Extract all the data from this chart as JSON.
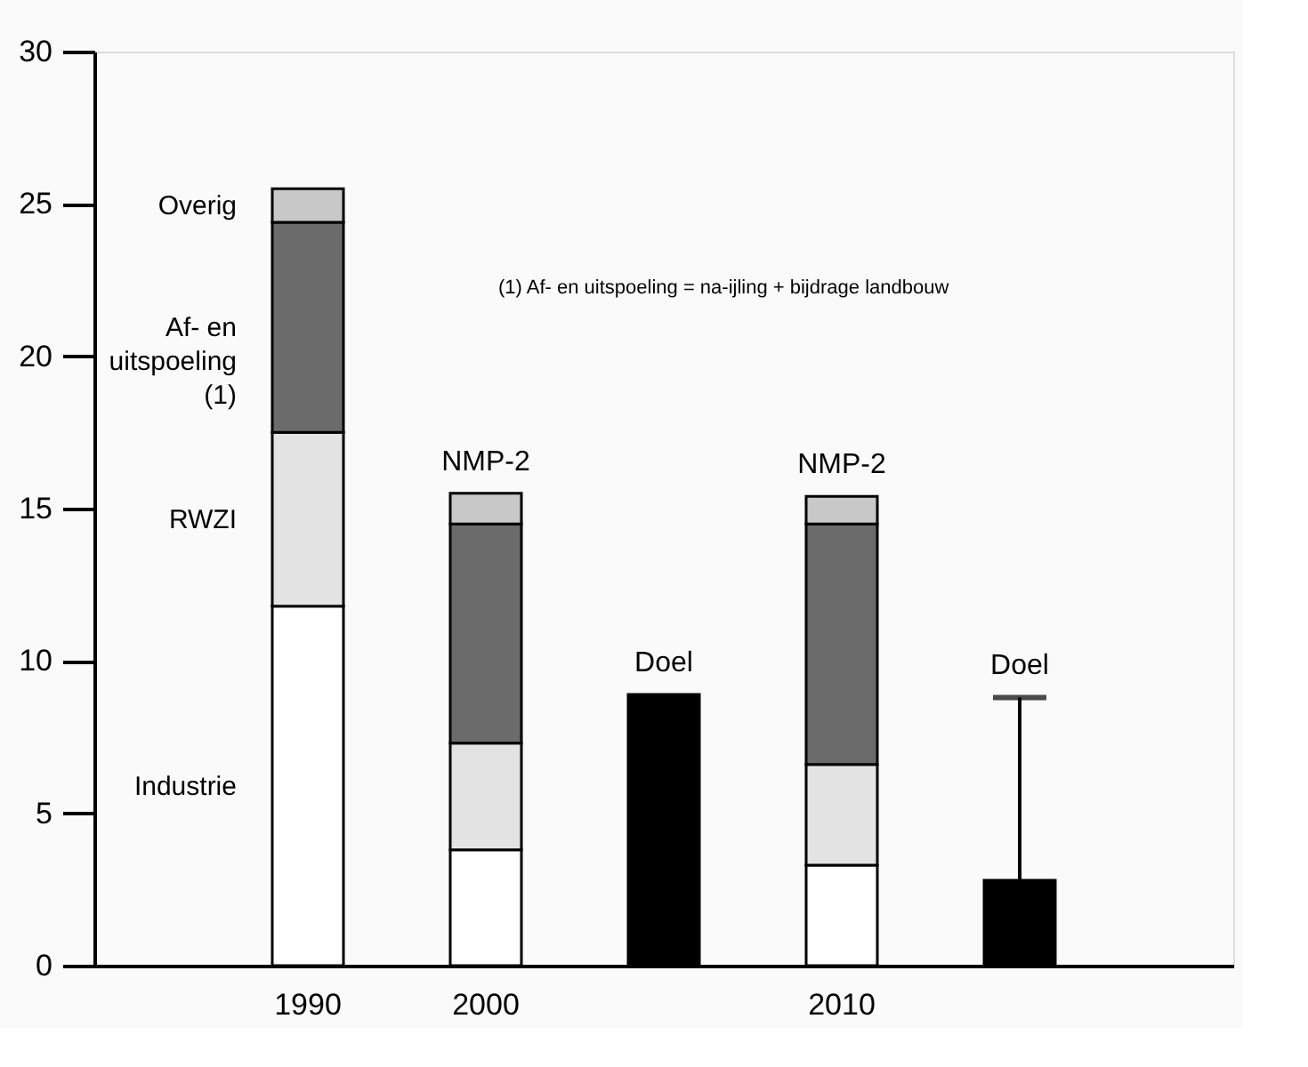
{
  "chart_data": {
    "type": "bar",
    "stacked": true,
    "categories": [
      "1990",
      "2000",
      null,
      "2010",
      null
    ],
    "series": [
      {
        "name": "Industrie",
        "color": "#ffffff",
        "values": [
          11.8,
          3.8,
          null,
          3.3,
          null
        ]
      },
      {
        "name": "RWZI",
        "color": "#e3e3e3",
        "values": [
          5.7,
          3.5,
          null,
          3.3,
          null
        ]
      },
      {
        "name": "Af- en uitspoeling (1)",
        "color": "#6b6b6b",
        "values": [
          6.9,
          7.2,
          null,
          7.9,
          null
        ]
      },
      {
        "name": "Overig",
        "color": "#c8c8c8",
        "values": [
          1.1,
          1.0,
          null,
          0.9,
          null
        ]
      },
      {
        "color": "#000000",
        "values": [
          null,
          null,
          8.9,
          null,
          2.8
        ],
        "errors": [
          null,
          null,
          null,
          null,
          [
            2.8,
            8.8
          ]
        ]
      }
    ],
    "ylim": [
      0,
      30
    ],
    "yticks": [
      0,
      5,
      10,
      15,
      20,
      25,
      30
    ],
    "grid": false,
    "legend": "left",
    "annotations": [
      {
        "text": "NMP-2",
        "x": "2000",
        "y": 15.5
      },
      {
        "text": "Doel",
        "y": 8.9
      },
      {
        "text": "NMP-2",
        "x": "2010",
        "y": 15.4
      },
      {
        "text": "Doel",
        "y": 8.8
      },
      "(1) Af- en uitspoeling = na-ijling + bijdrage landbouw"
    ]
  }
}
